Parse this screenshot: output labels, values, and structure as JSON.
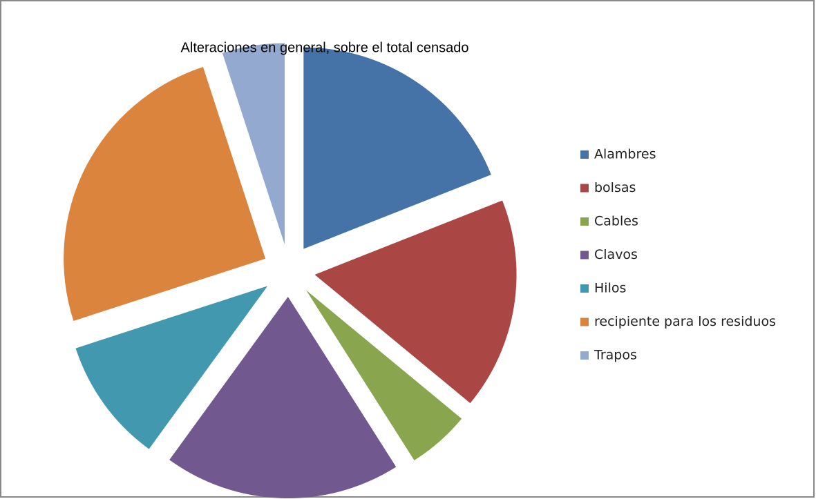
{
  "chart_data": {
    "type": "pie",
    "title": "Alteraciones en general, sobre el total censado",
    "categories": [
      "Alambres",
      "bolsas",
      "Cables",
      "Clavos",
      "Hilos",
      "recipiente para los residuos",
      "Trapos"
    ],
    "values": [
      19,
      17,
      5,
      19,
      10,
      25,
      5
    ],
    "colors": [
      "#4572a7",
      "#aa4643",
      "#89a54e",
      "#71588f",
      "#4198af",
      "#db843d",
      "#93a9cf"
    ],
    "exploded": true,
    "legend": "right"
  }
}
